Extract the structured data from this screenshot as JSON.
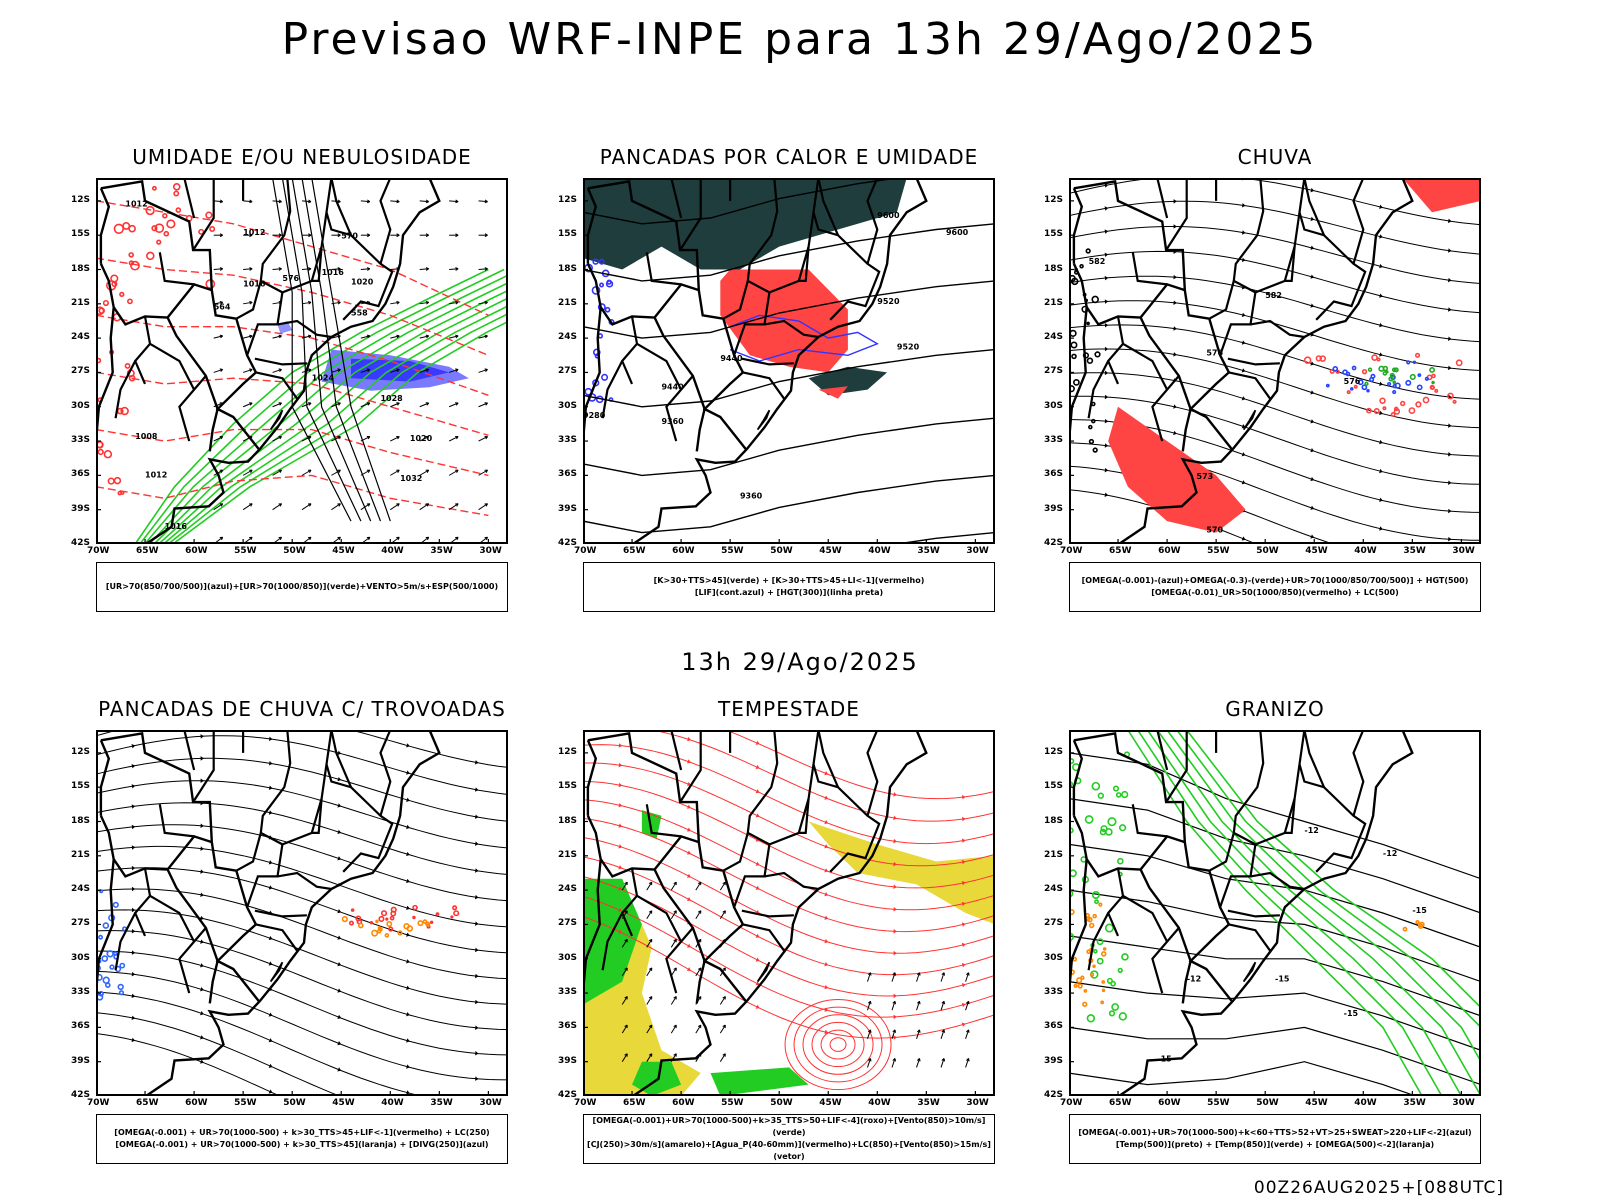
{
  "title": "Previsao WRF-INPE  para 13h 29/Ago/2025",
  "mid_title": "13h 29/Ago/2025",
  "footer": "00Z26AUG2025+[088UTC]",
  "axes": {
    "lat_ticks": [
      "12S",
      "15S",
      "18S",
      "21S",
      "24S",
      "27S",
      "30S",
      "33S",
      "36S",
      "39S",
      "42S"
    ],
    "lon_ticks": [
      "70W",
      "65W",
      "60W",
      "55W",
      "50W",
      "45W",
      "40W",
      "35W",
      "30W"
    ]
  },
  "panels": [
    {
      "title": "UMIDADE E/OU NEBULOSIDADE",
      "legend": [
        "[UR>70(850/700/500)](azul)+[UR>70(1000/850)](verde)+VENTO>5m/s+ESP(500/1000)"
      ],
      "labels": [
        "1012",
        "1012",
        "1016",
        "1020",
        "1016",
        "1024",
        "1028",
        "1032",
        "1020",
        "1008",
        "1012",
        "1016",
        "570",
        "564",
        "558",
        "576"
      ]
    },
    {
      "title": "PANCADAS POR CALOR E UMIDADE",
      "legend": [
        "[K>30+TTS>45](verde) + [K>30+TTS>45+LI<-1](vermelho)",
        "[LIF](cont.azul) + [HGT(300)](linha preta)"
      ],
      "labels": [
        "9600",
        "9600",
        "9520",
        "9520",
        "9440",
        "9440",
        "9360",
        "9360",
        "9280"
      ]
    },
    {
      "title": "CHUVA",
      "legend": [
        "[OMEGA(-0.001)-(azul)+OMEGA(-0.3)-(verde)+UR>70(1000/850/700/500)] + HGT(500)",
        "[OMEGA(-0.01)_UR>50(1000/850)(vermelho) + LC(500)"
      ],
      "labels": [
        "582",
        "582",
        "576",
        "576",
        "573",
        "570"
      ]
    },
    {
      "title": "PANCADAS DE CHUVA C/ TROVOADAS",
      "legend": [
        "[OMEGA(-0.001) + UR>70(1000-500) + k>30_TTS>45+LIF<-1](vermelho) + LC(250)",
        "[OMEGA(-0.001) + UR>70(1000-500) + k>30_TTS>45](laranja) + [DIVG(250)](azul)"
      ],
      "labels": []
    },
    {
      "title": "TEMPESTADE",
      "legend": [
        "[OMEGA(-0.001)+UR>70(1000-500)+k>35_TTS>50+LIF<-4](roxo)+[Vento(850)>10m/s](verde)",
        "[CJ(250)>30m/s](amarelo)+[Agua_P(40-60mm)](vermelho)+LC(850)+[Vento(850)>15m/s](vetor)"
      ],
      "labels": []
    },
    {
      "title": "GRANIZO",
      "legend": [
        "[OMEGA(-0.001)+UR>70(1000-500)+k<60+TTS>52+VT>25+SWEAT>220+LIF<-2](azul)",
        "[Temp(500)](preto) + [Temp(850)](verde) + [OMEGA(500)<-2](laranja)"
      ],
      "labels": [
        "-12",
        "-12",
        "-15",
        "-15",
        "-15",
        "-12",
        "-15"
      ]
    }
  ]
}
